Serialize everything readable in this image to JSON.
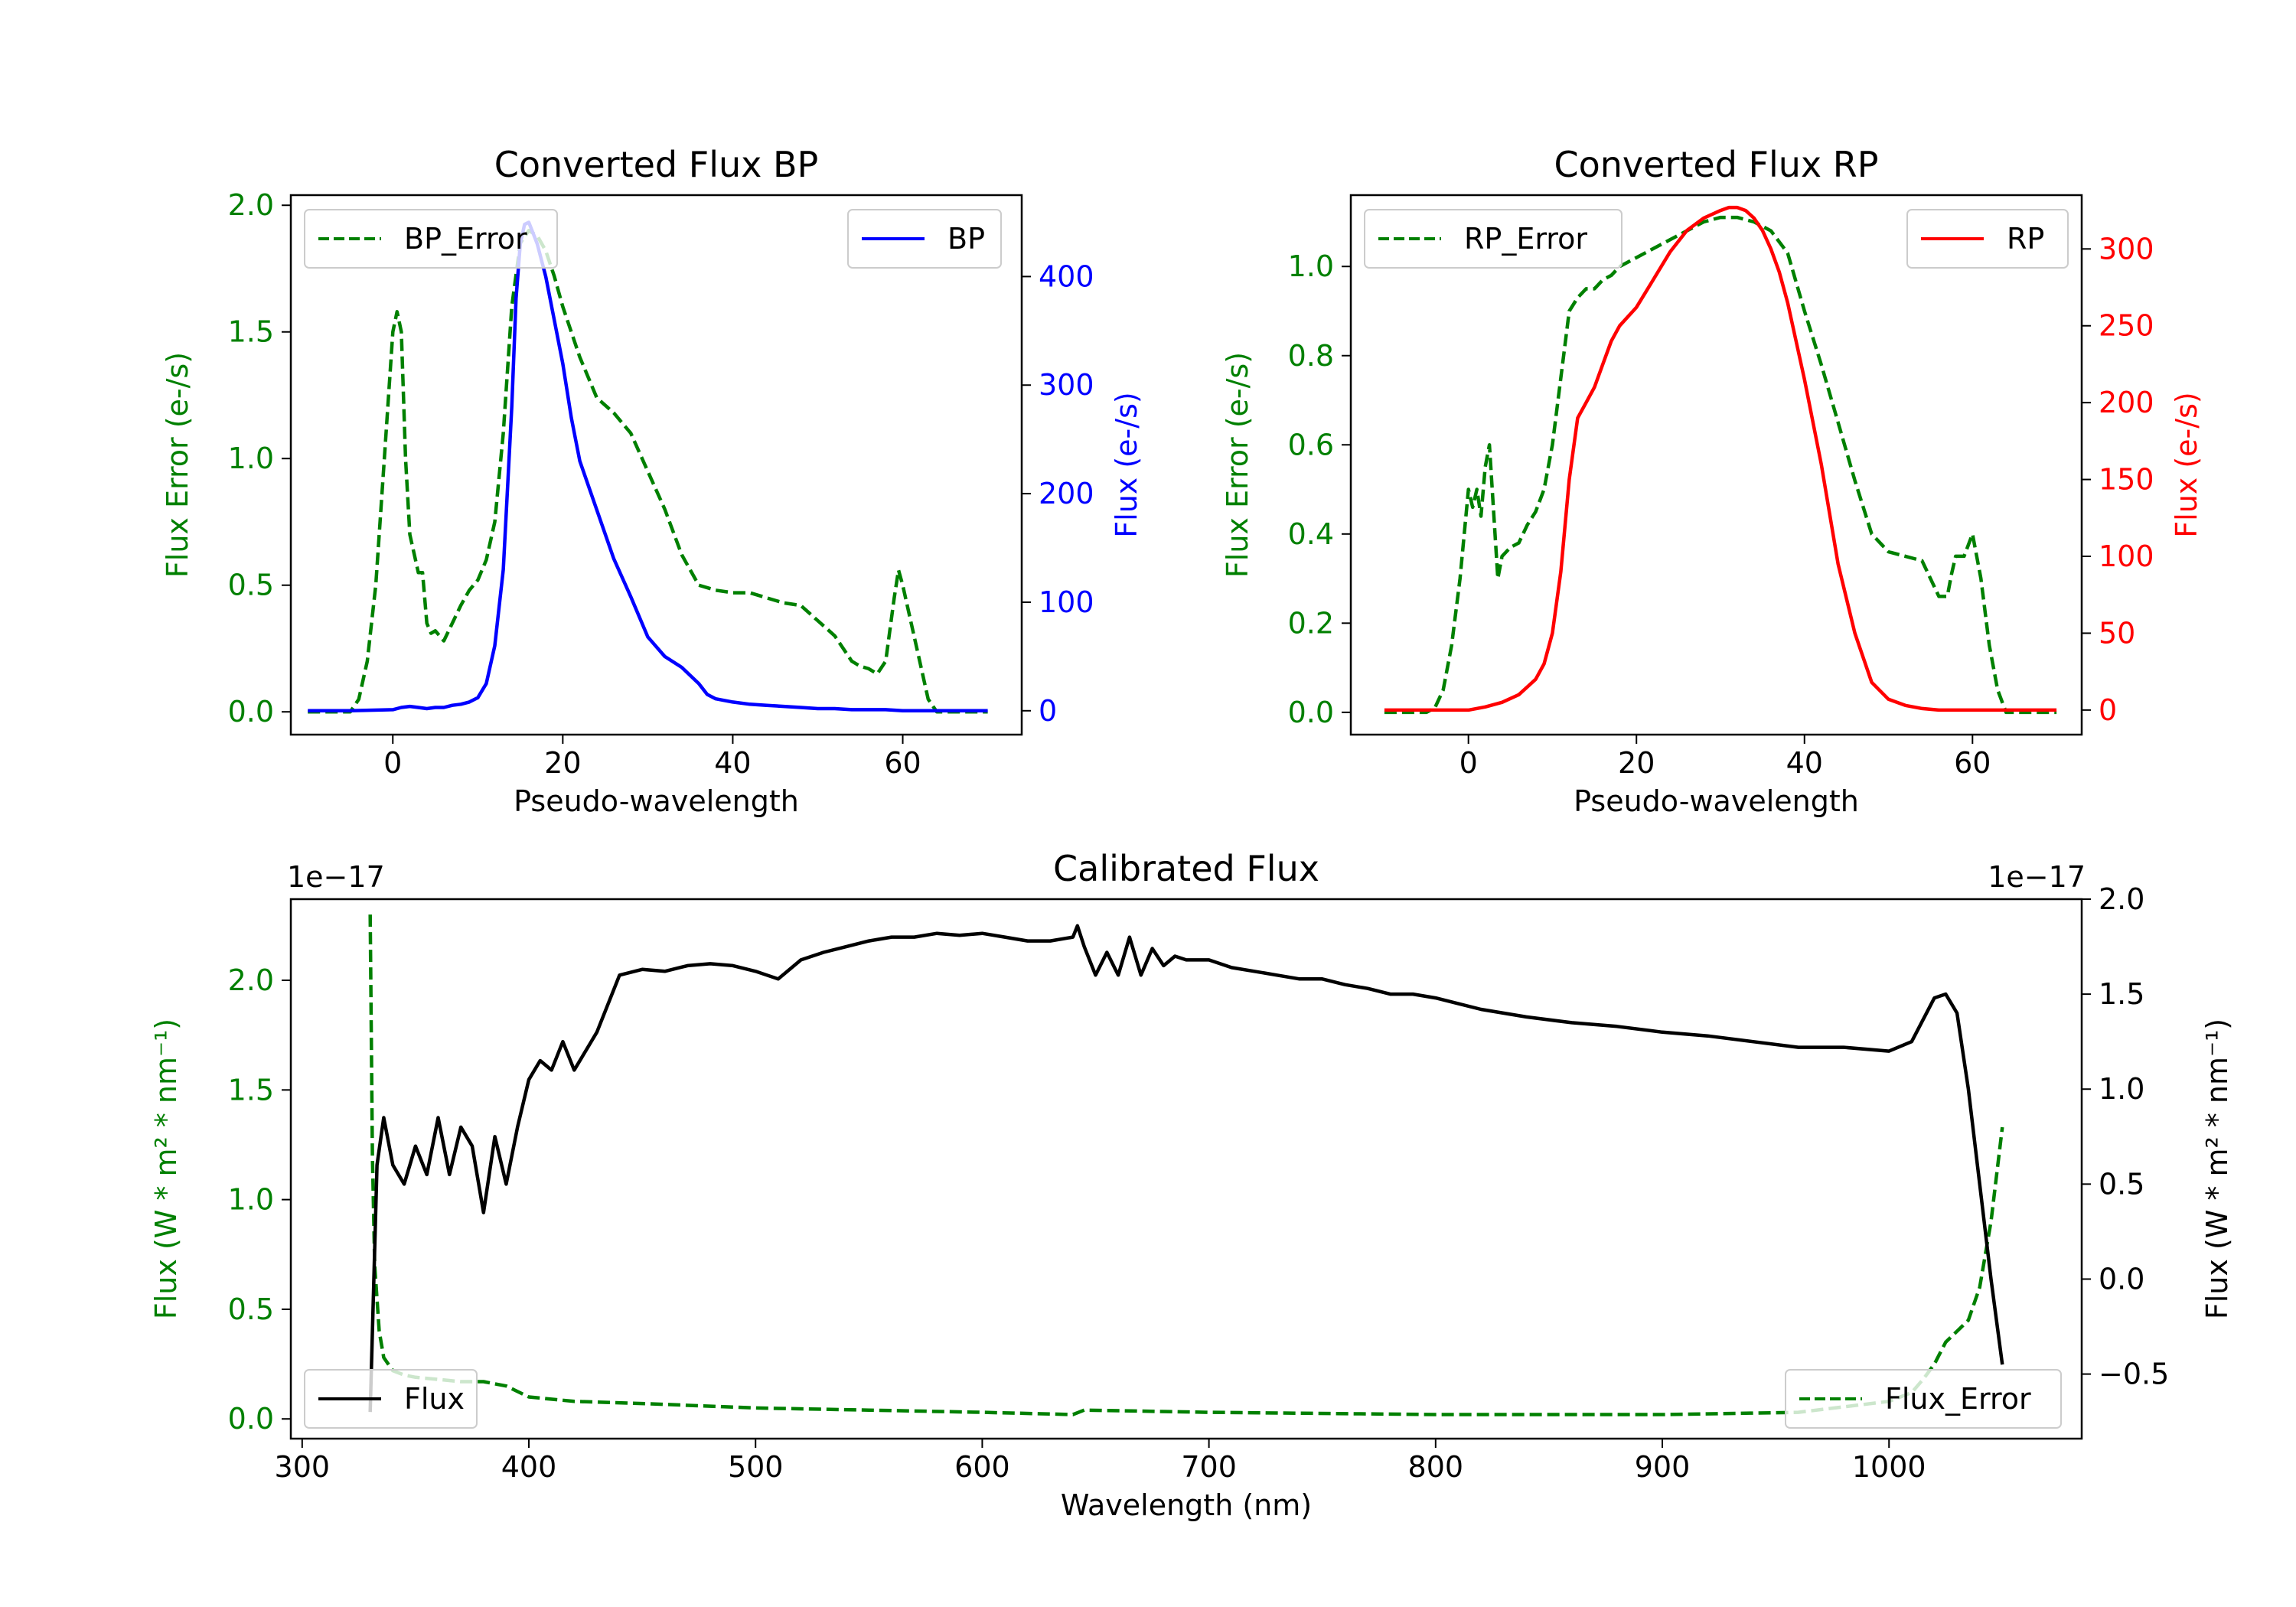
{
  "colors": {
    "green": "#008000",
    "blue": "#0000ff",
    "red": "#ff0000",
    "black": "#000000",
    "axis": "#000000"
  },
  "chart_data": [
    {
      "id": "bp",
      "type": "line",
      "title": "Converted Flux BP",
      "xlabel": "Pseudo-wavelength",
      "xlim": [
        -12,
        74
      ],
      "xticks": [
        0,
        20,
        40,
        60
      ],
      "xtick_labels": [
        "0",
        "20",
        "40",
        "60"
      ],
      "left_axis": {
        "label": "Flux Error (e-/s)",
        "color": "green",
        "ylim": [
          -0.09,
          2.04
        ],
        "ticks": [
          0.0,
          0.5,
          1.0,
          1.5,
          2.0
        ],
        "tick_labels": [
          "0.0",
          "0.5",
          "1.0",
          "1.5",
          "2.0"
        ]
      },
      "right_axis": {
        "label": "Flux (e-/s)",
        "color": "blue",
        "ylim": [
          -22,
          475
        ],
        "ticks": [
          0,
          100,
          200,
          300,
          400
        ],
        "tick_labels": [
          "0",
          "100",
          "200",
          "300",
          "400"
        ]
      },
      "legend_left": {
        "label": "BP_Error",
        "position": "upper left"
      },
      "legend_right": {
        "label": "BP",
        "position": "upper right"
      },
      "series": [
        {
          "name": "BP_Error",
          "axis": "left",
          "color": "green",
          "style": "dashed",
          "x": [
            -10,
            -5,
            -4,
            -3,
            -2,
            -1,
            0,
            0.5,
            1,
            1.5,
            2,
            3,
            3.5,
            4,
            4.5,
            5,
            6,
            7,
            8,
            9,
            10,
            11,
            12,
            13,
            14,
            15,
            16,
            17,
            18,
            19,
            20,
            22,
            24,
            26,
            28,
            30,
            32,
            34,
            36,
            38,
            40,
            42,
            44,
            46,
            48,
            50,
            52,
            54,
            55,
            56,
            57,
            58,
            59,
            59.5,
            60,
            61,
            62,
            63,
            64,
            65,
            66,
            70
          ],
          "y": [
            0.0,
            0.0,
            0.05,
            0.2,
            0.5,
            1.0,
            1.5,
            1.58,
            1.5,
            1.0,
            0.7,
            0.55,
            0.55,
            0.35,
            0.31,
            0.32,
            0.28,
            0.35,
            0.42,
            0.48,
            0.52,
            0.6,
            0.75,
            1.1,
            1.6,
            1.85,
            1.9,
            1.88,
            1.82,
            1.72,
            1.6,
            1.4,
            1.24,
            1.18,
            1.1,
            0.95,
            0.8,
            0.62,
            0.5,
            0.48,
            0.47,
            0.47,
            0.45,
            0.43,
            0.42,
            0.36,
            0.3,
            0.2,
            0.18,
            0.17,
            0.15,
            0.2,
            0.45,
            0.56,
            0.5,
            0.35,
            0.2,
            0.05,
            0.0,
            0.0,
            0.0,
            0.0
          ]
        },
        {
          "name": "BP",
          "axis": "right",
          "color": "blue",
          "style": "solid",
          "x": [
            -10,
            -5,
            0,
            1,
            2,
            3,
            4,
            5,
            6,
            7,
            8,
            9,
            10,
            11,
            12,
            13,
            14,
            14.5,
            15,
            15.5,
            16,
            16.5,
            17,
            18,
            19,
            20,
            21,
            22,
            24,
            26,
            28,
            30,
            32,
            34,
            36,
            37,
            38,
            40,
            42,
            44,
            46,
            48,
            50,
            52,
            54,
            56,
            58,
            60,
            62,
            64,
            66,
            70
          ],
          "y": [
            0,
            0,
            1,
            3,
            4,
            3,
            2,
            3,
            3,
            5,
            6,
            8,
            12,
            25,
            60,
            130,
            280,
            380,
            430,
            448,
            450,
            440,
            430,
            400,
            360,
            320,
            270,
            230,
            185,
            140,
            105,
            68,
            50,
            40,
            25,
            15,
            11,
            8,
            6,
            5,
            4,
            3,
            2,
            2,
            1,
            1,
            1,
            0,
            0,
            0,
            0,
            0
          ]
        }
      ]
    },
    {
      "id": "rp",
      "type": "line",
      "title": "Converted Flux RP",
      "xlabel": "Pseudo-wavelength",
      "xlim": [
        -14,
        73
      ],
      "xticks": [
        0,
        20,
        40,
        60
      ],
      "xtick_labels": [
        "0",
        "20",
        "40",
        "60"
      ],
      "left_axis": {
        "label": "Flux Error (e-/s)",
        "color": "green",
        "ylim": [
          -0.05,
          1.16
        ],
        "ticks": [
          0.0,
          0.2,
          0.4,
          0.6,
          0.8,
          1.0
        ],
        "tick_labels": [
          "0.0",
          "0.2",
          "0.4",
          "0.6",
          "0.8",
          "1.0"
        ]
      },
      "right_axis": {
        "label": "Flux (e-/s)",
        "color": "red",
        "ylim": [
          -16,
          335
        ],
        "ticks": [
          0,
          50,
          100,
          150,
          200,
          250,
          300
        ],
        "tick_labels": [
          "0",
          "50",
          "100",
          "150",
          "200",
          "250",
          "300"
        ]
      },
      "legend_left": {
        "label": "RP_Error",
        "position": "upper left"
      },
      "legend_right": {
        "label": "RP",
        "position": "upper right"
      },
      "series": [
        {
          "name": "RP_Error",
          "axis": "left",
          "color": "green",
          "style": "dashed",
          "x": [
            -10,
            -5,
            -4,
            -3,
            -2,
            -1,
            0,
            0.5,
            1,
            1.5,
            2,
            2.5,
            3,
            3.5,
            4,
            5,
            6,
            7,
            8,
            9,
            10,
            11,
            12,
            13,
            14,
            15,
            16,
            17,
            18,
            20,
            22,
            24,
            26,
            28,
            30,
            32,
            34,
            36,
            38,
            40,
            42,
            44,
            46,
            48,
            50,
            52,
            54,
            55,
            56,
            57,
            57.5,
            58,
            59,
            60,
            61,
            62,
            63,
            64,
            65,
            66,
            70
          ],
          "y": [
            0.0,
            0.0,
            0.01,
            0.05,
            0.15,
            0.3,
            0.5,
            0.46,
            0.5,
            0.44,
            0.55,
            0.6,
            0.45,
            0.3,
            0.35,
            0.37,
            0.38,
            0.42,
            0.45,
            0.5,
            0.6,
            0.75,
            0.9,
            0.93,
            0.95,
            0.95,
            0.97,
            0.98,
            1.0,
            1.02,
            1.04,
            1.06,
            1.08,
            1.1,
            1.11,
            1.11,
            1.1,
            1.08,
            1.03,
            0.9,
            0.78,
            0.65,
            0.52,
            0.4,
            0.36,
            0.35,
            0.34,
            0.3,
            0.26,
            0.26,
            0.31,
            0.35,
            0.35,
            0.4,
            0.3,
            0.15,
            0.05,
            0.0,
            0.0,
            0.0,
            0.0
          ]
        },
        {
          "name": "RP",
          "axis": "right",
          "color": "red",
          "style": "solid",
          "x": [
            -10,
            -5,
            0,
            2,
            4,
            6,
            8,
            9,
            10,
            11,
            12,
            13,
            14,
            15,
            16,
            17,
            18,
            20,
            22,
            24,
            26,
            28,
            30,
            31,
            32,
            33,
            34,
            35,
            36,
            37,
            38,
            39,
            40,
            42,
            44,
            46,
            48,
            50,
            52,
            54,
            56,
            58,
            60,
            62,
            64,
            66,
            70
          ],
          "y": [
            0,
            0,
            0,
            2,
            5,
            10,
            20,
            30,
            50,
            90,
            150,
            190,
            200,
            210,
            225,
            240,
            250,
            262,
            280,
            298,
            312,
            320,
            325,
            327,
            327,
            325,
            320,
            312,
            300,
            285,
            265,
            240,
            215,
            160,
            95,
            50,
            18,
            7,
            3,
            1,
            0,
            0,
            0,
            0,
            0,
            0,
            0
          ]
        }
      ]
    },
    {
      "id": "calibrated",
      "type": "line",
      "title": "Calibrated Flux",
      "xlabel": "Wavelength (nm)",
      "xlim": [
        295,
        1085
      ],
      "xticks": [
        300,
        400,
        500,
        600,
        700,
        800,
        900,
        1000
      ],
      "xtick_labels": [
        "300",
        "400",
        "500",
        "600",
        "700",
        "800",
        "900",
        "1000"
      ],
      "left_axis": {
        "label": "Flux (W * m² * nm⁻¹)",
        "color": "green",
        "offset_text": "1e−17",
        "ylim": [
          -0.09,
          2.37
        ],
        "ticks": [
          0.0,
          0.5,
          1.0,
          1.5,
          2.0
        ],
        "tick_labels": [
          "0.0",
          "0.5",
          "1.0",
          "1.5",
          "2.0"
        ]
      },
      "right_axis": {
        "label": "Flux (W * m² * nm⁻¹)",
        "color": "black",
        "offset_text": "1e−17",
        "ylim": [
          -0.84,
          2.0
        ],
        "ticks": [
          -0.5,
          0.0,
          0.5,
          1.0,
          1.5,
          2.0
        ],
        "tick_labels": [
          "−0.5",
          "0.0",
          "0.5",
          "1.0",
          "1.5",
          "2.0"
        ]
      },
      "legend_left": {
        "label": "Flux",
        "position": "lower left"
      },
      "legend_right": {
        "label": "Flux_Error",
        "position": "lower right"
      },
      "series": [
        {
          "name": "Flux_Error",
          "axis": "left",
          "color": "green",
          "style": "dashed",
          "x": [
            330,
            331,
            332,
            334,
            336,
            340,
            345,
            350,
            360,
            370,
            380,
            390,
            400,
            420,
            450,
            500,
            550,
            600,
            640,
            645,
            700,
            800,
            900,
            960,
            1000,
            1010,
            1015,
            1020,
            1025,
            1030,
            1035,
            1040,
            1045,
            1050
          ],
          "y": [
            2.3,
            1.2,
            0.7,
            0.4,
            0.28,
            0.22,
            0.2,
            0.19,
            0.18,
            0.17,
            0.17,
            0.15,
            0.1,
            0.08,
            0.07,
            0.05,
            0.04,
            0.03,
            0.02,
            0.04,
            0.03,
            0.02,
            0.02,
            0.03,
            0.08,
            0.12,
            0.18,
            0.25,
            0.35,
            0.4,
            0.45,
            0.6,
            0.9,
            1.33
          ]
        },
        {
          "name": "Flux",
          "axis": "right",
          "color": "black",
          "style": "solid",
          "x": [
            330,
            333,
            336,
            340,
            345,
            350,
            355,
            360,
            365,
            370,
            375,
            380,
            385,
            390,
            395,
            400,
            405,
            410,
            415,
            420,
            425,
            430,
            440,
            450,
            460,
            470,
            480,
            490,
            500,
            510,
            520,
            530,
            540,
            550,
            560,
            570,
            580,
            590,
            600,
            610,
            620,
            630,
            640,
            642,
            645,
            650,
            655,
            660,
            665,
            670,
            675,
            680,
            685,
            690,
            700,
            710,
            720,
            730,
            740,
            750,
            760,
            770,
            780,
            790,
            800,
            820,
            840,
            860,
            880,
            900,
            920,
            940,
            960,
            980,
            1000,
            1010,
            1020,
            1025,
            1030,
            1035,
            1040,
            1045,
            1050
          ],
          "y": [
            -0.7,
            0.6,
            0.85,
            0.6,
            0.5,
            0.7,
            0.55,
            0.85,
            0.55,
            0.8,
            0.7,
            0.35,
            0.75,
            0.5,
            0.8,
            1.05,
            1.15,
            1.1,
            1.25,
            1.1,
            1.2,
            1.3,
            1.6,
            1.63,
            1.62,
            1.65,
            1.66,
            1.65,
            1.62,
            1.58,
            1.68,
            1.72,
            1.75,
            1.78,
            1.8,
            1.8,
            1.82,
            1.81,
            1.82,
            1.8,
            1.78,
            1.78,
            1.8,
            1.86,
            1.75,
            1.6,
            1.72,
            1.6,
            1.8,
            1.6,
            1.74,
            1.65,
            1.7,
            1.68,
            1.68,
            1.64,
            1.62,
            1.6,
            1.58,
            1.58,
            1.55,
            1.53,
            1.5,
            1.5,
            1.48,
            1.42,
            1.38,
            1.35,
            1.33,
            1.3,
            1.28,
            1.25,
            1.22,
            1.22,
            1.2,
            1.25,
            1.48,
            1.5,
            1.4,
            1.0,
            0.5,
            0.0,
            -0.45
          ]
        }
      ]
    }
  ]
}
